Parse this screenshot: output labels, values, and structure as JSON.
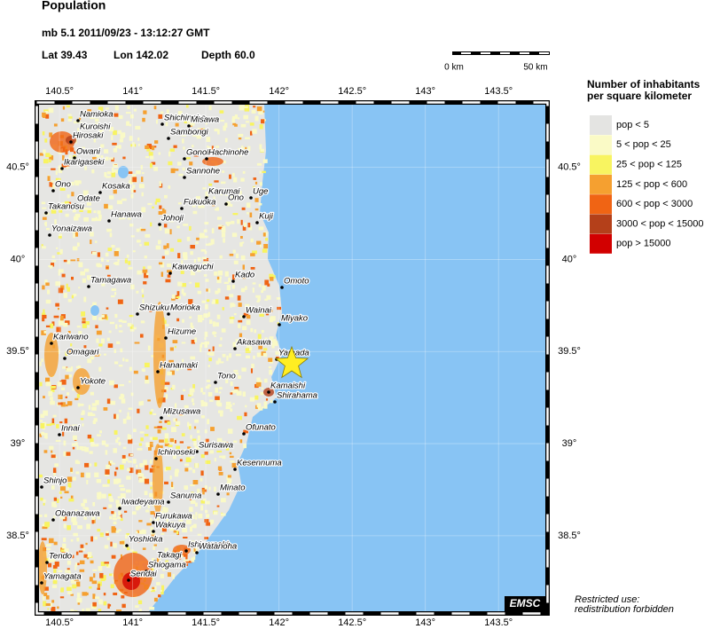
{
  "header": {
    "title": "Population",
    "event": "mb 5.1  2011/09/23 - 13:12:27 GMT",
    "lat": "Lat 39.43",
    "lon": "Lon 142.02",
    "depth": "Depth  60.0"
  },
  "scale_bar": {
    "start": "0 km",
    "end": "50 km"
  },
  "legend": {
    "title_lines": [
      "Number of inhabitants",
      "per square kilometer"
    ],
    "items": [
      {
        "label": "pop < 5",
        "color": "#e4e4e2"
      },
      {
        "label": "5 < pop < 25",
        "color": "#fafac6"
      },
      {
        "label": "25 < pop < 125",
        "color": "#f8f460"
      },
      {
        "label": "125 < pop < 600",
        "color": "#f5a030"
      },
      {
        "label": "600 < pop < 3000",
        "color": "#f06414"
      },
      {
        "label": "3000 < pop < 15000",
        "color": "#b4401a"
      },
      {
        "label": "pop > 15000",
        "color": "#d20000"
      }
    ]
  },
  "map": {
    "xlim": [
      140.36,
      143.82
    ],
    "ylim": [
      38.09,
      40.84
    ],
    "xticks": [
      {
        "value": 140.5,
        "label": "140.5°"
      },
      {
        "value": 141,
        "label": "141°"
      },
      {
        "value": 141.5,
        "label": "141.5°"
      },
      {
        "value": 142,
        "label": "142°"
      },
      {
        "value": 142.5,
        "label": "142.5°"
      },
      {
        "value": 143,
        "label": "143°"
      },
      {
        "value": 143.5,
        "label": "143.5°"
      }
    ],
    "yticks": [
      {
        "value": 40.5,
        "label": "40.5°"
      },
      {
        "value": 40,
        "label": "40°"
      },
      {
        "value": 39.5,
        "label": "39.5°"
      },
      {
        "value": 39,
        "label": "39°"
      },
      {
        "value": 38.5,
        "label": "38.5°"
      }
    ],
    "cities": [
      "Namioka",
      "Kuroishi",
      "Hirosaki",
      "Shichinohe",
      "Misawa",
      "Sambongi",
      "Owani",
      "Ikarigaseki",
      "Gonohe",
      "Hachinohe",
      "Sannohe",
      "Ono",
      "Kosaka",
      "Karumai",
      "Uge",
      "Odate",
      "Fukuoka",
      "Ono",
      "Takanosu",
      "Hanawa",
      "Johoji",
      "Kuji",
      "Yonaizawa",
      "Kawaguchi",
      "Kado",
      "Tamagawa",
      "Omoto",
      "Shizukuishi",
      "Morioka",
      "Wainai",
      "Miyako",
      "Hizume",
      "Akasawa",
      "Kariwano",
      "Omagari",
      "Yamada",
      "Hanamaki",
      "Tono",
      "Yokote",
      "Kamaishi",
      "Shirahama",
      "Mizusawa",
      "Innai",
      "Ofunato",
      "Surisawa",
      "Ichinoseki",
      "Kesennuma",
      "Shinjo",
      "Minato",
      "Sanuma",
      "Iwadeyama",
      "Obanazawa",
      "Furukawa",
      "Wakuya",
      "Yoshioka",
      "Ishinomaki",
      "Watanoha",
      "Takagi",
      "Tendo",
      "Shiogama",
      "Yamagata",
      "Sendai"
    ]
  },
  "footer": {
    "badge": "EMSC",
    "notice_lines": [
      "Restricted use:",
      "redistribution forbidden"
    ]
  }
}
